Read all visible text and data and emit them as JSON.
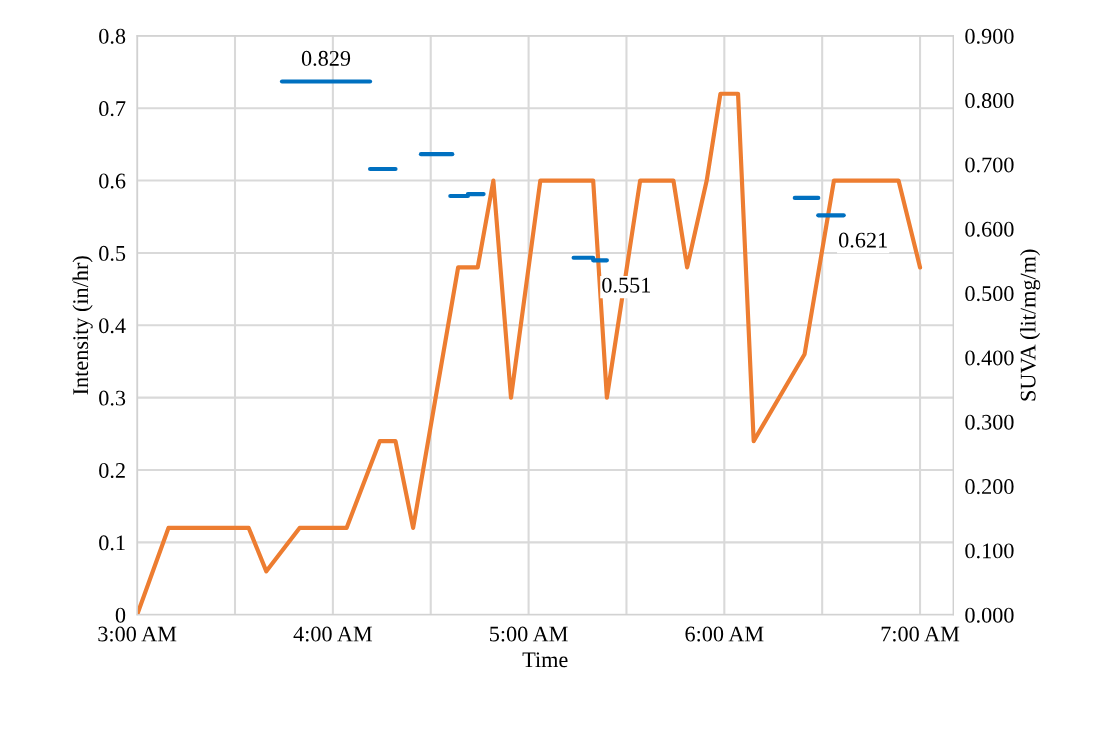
{
  "chart_data": {
    "type": "line",
    "xlabel": "Time",
    "ylabel": "Intensity (in/hr)",
    "y2label": "SUVA (lit/mg/m)",
    "xlim": [
      3,
      7.17
    ],
    "xticks": [
      {
        "value": 3,
        "label": "3:00 AM"
      },
      {
        "value": 3.5,
        "label": null
      },
      {
        "value": 4,
        "label": "4:00 AM"
      },
      {
        "value": 4.5,
        "label": null
      },
      {
        "value": 5,
        "label": "5:00 AM"
      },
      {
        "value": 5.5,
        "label": null
      },
      {
        "value": 6,
        "label": "6:00 AM"
      },
      {
        "value": 6.5,
        "label": null
      },
      {
        "value": 7,
        "label": "7:00 AM"
      }
    ],
    "ylim": [
      0,
      0.8
    ],
    "yticks": [
      0,
      0.1,
      0.2,
      0.3,
      0.4,
      0.5,
      0.6,
      0.7,
      0.8
    ],
    "y2lim": [
      0,
      0.9
    ],
    "y2ticks": [
      {
        "value": 0,
        "label": "0.000"
      },
      {
        "value": 0.1,
        "label": "0.100"
      },
      {
        "value": 0.2,
        "label": "0.200"
      },
      {
        "value": 0.3,
        "label": "0.300"
      },
      {
        "value": 0.4,
        "label": "0.400"
      },
      {
        "value": 0.5,
        "label": "0.500"
      },
      {
        "value": 0.6,
        "label": "0.600"
      },
      {
        "value": 0.7,
        "label": "0.700"
      },
      {
        "value": 0.8,
        "label": "0.800"
      },
      {
        "value": 0.9,
        "label": "0.900"
      }
    ],
    "grid": true,
    "series": [
      {
        "color": "#ed7d31",
        "x": [
          3.0,
          3.16,
          3.57,
          3.66,
          3.83,
          4.07,
          4.24,
          4.32,
          4.41,
          4.64,
          4.74,
          4.82,
          4.91,
          5.06,
          5.33,
          5.4,
          5.57,
          5.74,
          5.81,
          5.91,
          5.98,
          6.07,
          6.15,
          6.41,
          6.56,
          6.89,
          7.0
        ],
        "values": [
          0,
          0.12,
          0.12,
          0.06,
          0.12,
          0.12,
          0.24,
          0.24,
          0.12,
          0.48,
          0.48,
          0.6,
          0.3,
          0.6,
          0.6,
          0.3,
          0.6,
          0.6,
          0.48,
          0.6,
          0.72,
          0.72,
          0.24,
          0.36,
          0.6,
          0.6,
          0.48
        ]
      },
      {
        "color": "#0070c0",
        "axis": "y2",
        "x": [
          3.74,
          3.965,
          4.19
        ],
        "values": [
          0.829,
          0.829,
          0.829
        ],
        "value_labels": [
          null,
          "0.829",
          null
        ]
      },
      {
        "color": "#0070c0",
        "axis": "y2",
        "x": [
          4.19,
          4.32
        ],
        "values": [
          0.693,
          0.693
        ]
      },
      {
        "color": "#0070c0",
        "axis": "y2",
        "x": [
          4.45,
          4.61
        ],
        "values": [
          0.716,
          0.716
        ]
      },
      {
        "color": "#0070c0",
        "axis": "y2",
        "x": [
          4.6,
          4.69,
          4.69,
          4.77
        ],
        "values": [
          0.651,
          0.651,
          0.654,
          0.654
        ]
      },
      {
        "color": "#0070c0",
        "axis": "y2",
        "x": [
          5.23,
          5.33,
          5.33,
          5.4
        ],
        "values": [
          0.555,
          0.555,
          0.551,
          0.551
        ],
        "value_labels": [
          null,
          null,
          null,
          "0.551"
        ]
      },
      {
        "color": "#0070c0",
        "axis": "y2",
        "x": [
          6.36,
          6.48
        ],
        "values": [
          0.648,
          0.648
        ]
      },
      {
        "color": "#0070c0",
        "axis": "y2",
        "x": [
          6.48,
          6.61
        ],
        "values": [
          0.621,
          0.621
        ],
        "value_labels": [
          null,
          "0.621"
        ]
      }
    ]
  }
}
